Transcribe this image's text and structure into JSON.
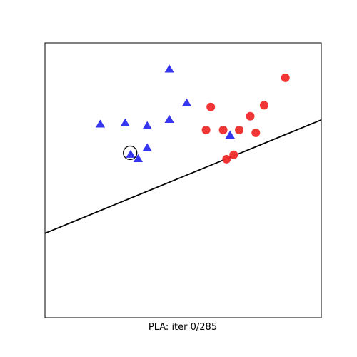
{
  "chart_data": {
    "type": "scatter",
    "title": "",
    "xlabel": "PLA: iter 0/285",
    "ylabel": "",
    "xlim": [
      0,
      1
    ],
    "ylim": [
      0,
      1
    ],
    "show_ticks": false,
    "grid": false,
    "series": [
      {
        "marker": "triangle",
        "color": "#2b2bf0",
        "points": [
          [
            0.2,
            0.703
          ],
          [
            0.29,
            0.707
          ],
          [
            0.37,
            0.697
          ],
          [
            0.45,
            0.72
          ],
          [
            0.45,
            0.903
          ],
          [
            0.513,
            0.78
          ],
          [
            0.37,
            0.617
          ],
          [
            0.31,
            0.593
          ],
          [
            0.337,
            0.577
          ],
          [
            0.67,
            0.663
          ]
        ]
      },
      {
        "marker": "circle",
        "color": "#f02b2b",
        "points": [
          [
            0.6,
            0.767
          ],
          [
            0.583,
            0.683
          ],
          [
            0.645,
            0.683
          ],
          [
            0.703,
            0.683
          ],
          [
            0.743,
            0.733
          ],
          [
            0.793,
            0.773
          ],
          [
            0.763,
            0.673
          ],
          [
            0.87,
            0.873
          ],
          [
            0.683,
            0.593
          ],
          [
            0.657,
            0.577
          ]
        ]
      }
    ],
    "highlight": {
      "point": [
        0.308,
        0.6
      ],
      "style": "open-circle"
    },
    "decision_line": {
      "x": [
        0,
        1
      ],
      "y": [
        0.307,
        0.72
      ],
      "color": "#000000"
    }
  }
}
